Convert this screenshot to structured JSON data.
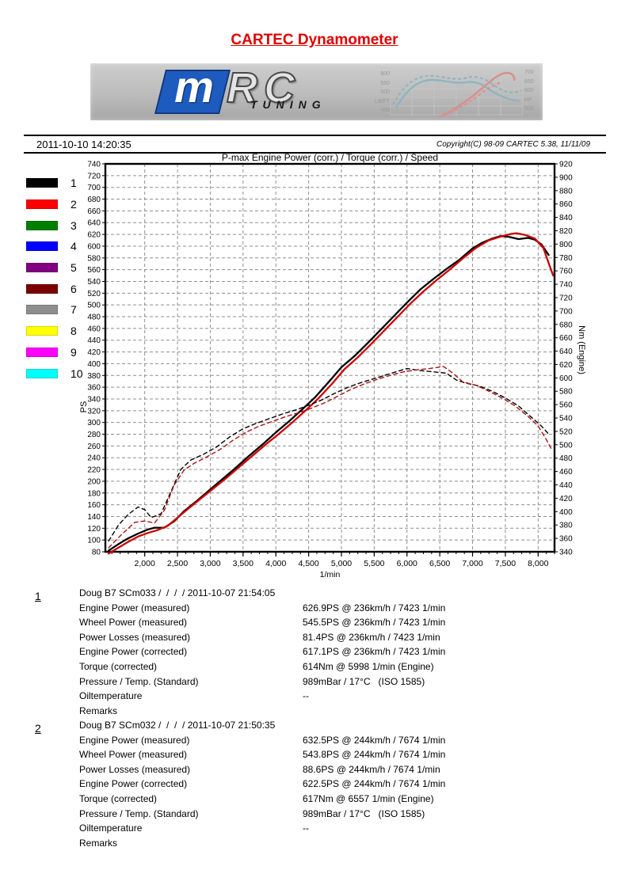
{
  "page": {
    "title": "CARTEC Dynamometer",
    "date": "2011-10-10 14:20:35",
    "copyright": "Copyright(C) 98-09 CARTEC 5.38, 11/11/09"
  },
  "banner": {
    "logo_m": "m",
    "logo_rc": "RC",
    "logo_sub": "TUNING",
    "mini_chart": {
      "left_labels": [
        "600",
        "550",
        "500",
        "LB/FT",
        "400"
      ],
      "right_labels": [
        "700",
        "650",
        "600",
        "HP",
        "500"
      ],
      "teal_color": "#8fb4c0",
      "pink_color": "#d89090"
    }
  },
  "legend": {
    "items": [
      {
        "num": "1",
        "color": "#000000"
      },
      {
        "num": "2",
        "color": "#ff0000"
      },
      {
        "num": "3",
        "color": "#008000"
      },
      {
        "num": "4",
        "color": "#0000ff"
      },
      {
        "num": "5",
        "color": "#800080"
      },
      {
        "num": "6",
        "color": "#7b0000"
      },
      {
        "num": "7",
        "color": "#8e8e8e"
      },
      {
        "num": "8",
        "color": "#ffff00"
      },
      {
        "num": "9",
        "color": "#ff00ff"
      },
      {
        "num": "10",
        "color": "#00ffff"
      }
    ]
  },
  "chart_data": {
    "type": "line",
    "title": "P-max Engine Power (corr.) / Torque (corr.) / Speed",
    "xlabel": "1/min",
    "grid": "dashed",
    "x_range": [
      1400,
      8250
    ],
    "x_ticks": [
      {
        "value": 2000,
        "label": "2,000"
      },
      {
        "value": 2500,
        "label": "2,500"
      },
      {
        "value": 3000,
        "label": "3,000"
      },
      {
        "value": 3500,
        "label": "3,500"
      },
      {
        "value": 4000,
        "label": "4,000"
      },
      {
        "value": 4500,
        "label": "4,500"
      },
      {
        "value": 5000,
        "label": "5,000"
      },
      {
        "value": 5500,
        "label": "5,500"
      },
      {
        "value": 6000,
        "label": "6,000"
      },
      {
        "value": 6500,
        "label": "6,500"
      },
      {
        "value": 7000,
        "label": "7,000"
      },
      {
        "value": 7500,
        "label": "7,500"
      },
      {
        "value": 8000,
        "label": "8,000"
      }
    ],
    "left_axis": {
      "label": "PS",
      "min": 80,
      "max": 740,
      "step": 20
    },
    "right_axis": {
      "label": "Nm (Engine)",
      "min": 340,
      "max": 920,
      "step": 20
    },
    "series": [
      {
        "name": "run1-engine-power-corr-PS",
        "axis": "left",
        "color": "#000000",
        "style": "solid",
        "points": [
          [
            1450,
            82
          ],
          [
            1600,
            93
          ],
          [
            1750,
            103
          ],
          [
            1900,
            111
          ],
          [
            2050,
            118
          ],
          [
            2150,
            121
          ],
          [
            2300,
            121
          ],
          [
            2450,
            132
          ],
          [
            2600,
            149
          ],
          [
            2800,
            167
          ],
          [
            3000,
            186
          ],
          [
            3200,
            205
          ],
          [
            3400,
            224
          ],
          [
            3600,
            244
          ],
          [
            3800,
            263
          ],
          [
            4000,
            283
          ],
          [
            4200,
            302
          ],
          [
            4400,
            322
          ],
          [
            4600,
            343
          ],
          [
            4800,
            368
          ],
          [
            5000,
            394
          ],
          [
            5200,
            413
          ],
          [
            5400,
            435
          ],
          [
            5600,
            458
          ],
          [
            5800,
            481
          ],
          [
            6000,
            504
          ],
          [
            6200,
            526
          ],
          [
            6400,
            544
          ],
          [
            6600,
            561
          ],
          [
            6800,
            577
          ],
          [
            7000,
            596
          ],
          [
            7150,
            606
          ],
          [
            7300,
            613
          ],
          [
            7423,
            617
          ],
          [
            7550,
            616
          ],
          [
            7700,
            612
          ],
          [
            7850,
            614
          ],
          [
            7950,
            611
          ],
          [
            8050,
            603
          ],
          [
            8160,
            585
          ]
        ]
      },
      {
        "name": "run2-engine-power-corr-PS",
        "axis": "left",
        "color": "#cc0000",
        "style": "solid",
        "points": [
          [
            1450,
            77
          ],
          [
            1600,
            87
          ],
          [
            1750,
            97
          ],
          [
            1900,
            106
          ],
          [
            2050,
            112
          ],
          [
            2200,
            117
          ],
          [
            2350,
            124
          ],
          [
            2500,
            138
          ],
          [
            2650,
            152
          ],
          [
            2850,
            170
          ],
          [
            3050,
            188
          ],
          [
            3250,
            206
          ],
          [
            3450,
            225
          ],
          [
            3650,
            244
          ],
          [
            3850,
            263
          ],
          [
            4050,
            281
          ],
          [
            4250,
            300
          ],
          [
            4450,
            320
          ],
          [
            4650,
            341
          ],
          [
            4850,
            365
          ],
          [
            5050,
            391
          ],
          [
            5250,
            411
          ],
          [
            5450,
            433
          ],
          [
            5650,
            456
          ],
          [
            5850,
            479
          ],
          [
            6050,
            502
          ],
          [
            6250,
            523
          ],
          [
            6450,
            542
          ],
          [
            6650,
            560
          ],
          [
            6850,
            579
          ],
          [
            7050,
            597
          ],
          [
            7250,
            610
          ],
          [
            7450,
            617
          ],
          [
            7600,
            621
          ],
          [
            7674,
            622
          ],
          [
            7800,
            619
          ],
          [
            7950,
            613
          ],
          [
            8080,
            597
          ],
          [
            8180,
            565
          ],
          [
            8230,
            550
          ]
        ]
      },
      {
        "name": "run1-torque-corr-Nm",
        "axis": "right",
        "color": "#000000",
        "style": "dashed",
        "points": [
          [
            1450,
            356
          ],
          [
            1600,
            380
          ],
          [
            1750,
            396
          ],
          [
            1900,
            407
          ],
          [
            2000,
            403
          ],
          [
            2100,
            391
          ],
          [
            2250,
            397
          ],
          [
            2400,
            430
          ],
          [
            2550,
            463
          ],
          [
            2700,
            477
          ],
          [
            2900,
            486
          ],
          [
            3100,
            497
          ],
          [
            3300,
            512
          ],
          [
            3500,
            524
          ],
          [
            3700,
            532
          ],
          [
            3900,
            539
          ],
          [
            4100,
            546
          ],
          [
            4300,
            552
          ],
          [
            4500,
            559
          ],
          [
            4700,
            567
          ],
          [
            4900,
            577
          ],
          [
            5100,
            586
          ],
          [
            5300,
            593
          ],
          [
            5500,
            599
          ],
          [
            5700,
            605
          ],
          [
            5998,
            614
          ],
          [
            6200,
            611
          ],
          [
            6400,
            609
          ],
          [
            6600,
            607
          ],
          [
            6750,
            597
          ],
          [
            6900,
            592
          ],
          [
            7100,
            588
          ],
          [
            7300,
            580
          ],
          [
            7500,
            570
          ],
          [
            7700,
            558
          ],
          [
            7900,
            541
          ],
          [
            8050,
            528
          ],
          [
            8160,
            516
          ]
        ]
      },
      {
        "name": "run2-torque-corr-Nm",
        "axis": "right",
        "color": "#aa1111",
        "style": "dashed",
        "points": [
          [
            1450,
            346
          ],
          [
            1650,
            366
          ],
          [
            1850,
            384
          ],
          [
            2000,
            386
          ],
          [
            2150,
            383
          ],
          [
            2300,
            402
          ],
          [
            2450,
            440
          ],
          [
            2600,
            462
          ],
          [
            2750,
            472
          ],
          [
            2950,
            482
          ],
          [
            3150,
            493
          ],
          [
            3350,
            507
          ],
          [
            3550,
            519
          ],
          [
            3750,
            528
          ],
          [
            3950,
            535
          ],
          [
            4150,
            542
          ],
          [
            4350,
            548
          ],
          [
            4550,
            555
          ],
          [
            4750,
            563
          ],
          [
            4950,
            573
          ],
          [
            5150,
            583
          ],
          [
            5350,
            591
          ],
          [
            5550,
            598
          ],
          [
            5750,
            604
          ],
          [
            5950,
            609
          ],
          [
            6150,
            612
          ],
          [
            6350,
            614
          ],
          [
            6557,
            617
          ],
          [
            6700,
            607
          ],
          [
            6850,
            594
          ],
          [
            7050,
            589
          ],
          [
            7250,
            580
          ],
          [
            7450,
            570
          ],
          [
            7650,
            558
          ],
          [
            7850,
            542
          ],
          [
            8000,
            528
          ],
          [
            8100,
            512
          ],
          [
            8200,
            494
          ]
        ]
      }
    ]
  },
  "runs": [
    {
      "number": "1",
      "header": "Doug B7 SCm033 /  /  /  / 2011-10-07 21:54:05",
      "rows": [
        {
          "label": "Engine Power (measured)",
          "value": "626.9PS @ 236km/h / 7423 1/min"
        },
        {
          "label": "Wheel Power (measured)",
          "value": "545.5PS @ 236km/h / 7423 1/min"
        },
        {
          "label": "Power Losses (measured)",
          "value": "81.4PS @ 236km/h / 7423 1/min"
        },
        {
          "label": "Engine Power (corrected)",
          "value": "617.1PS @ 236km/h / 7423 1/min"
        },
        {
          "label": "Torque (corrected)",
          "value": "614Nm @ 5998 1/min (Engine)"
        },
        {
          "label": "Pressure / Temp. (Standard)",
          "value": "989mBar / 17°C   (ISO 1585)"
        },
        {
          "label": "Oiltemperature",
          "value": "--"
        },
        {
          "label": "Remarks",
          "value": ""
        }
      ]
    },
    {
      "number": "2",
      "header": "Doug B7 SCm032 /  /  /  / 2011-10-07 21:50:35",
      "rows": [
        {
          "label": "Engine Power (measured)",
          "value": "632.5PS @ 244km/h / 7674 1/min"
        },
        {
          "label": "Wheel Power (measured)",
          "value": "543.8PS @ 244km/h / 7674 1/min"
        },
        {
          "label": "Power Losses (measured)",
          "value": "88.6PS @ 244km/h / 7674 1/min"
        },
        {
          "label": "Engine Power (corrected)",
          "value": "622.5PS @ 244km/h / 7674 1/min"
        },
        {
          "label": "Torque (corrected)",
          "value": "617Nm @ 6557 1/min (Engine)"
        },
        {
          "label": "Pressure / Temp. (Standard)",
          "value": "989mBar / 17°C   (ISO 1585)"
        },
        {
          "label": "Oiltemperature",
          "value": "--"
        },
        {
          "label": "Remarks",
          "value": ""
        }
      ]
    }
  ]
}
